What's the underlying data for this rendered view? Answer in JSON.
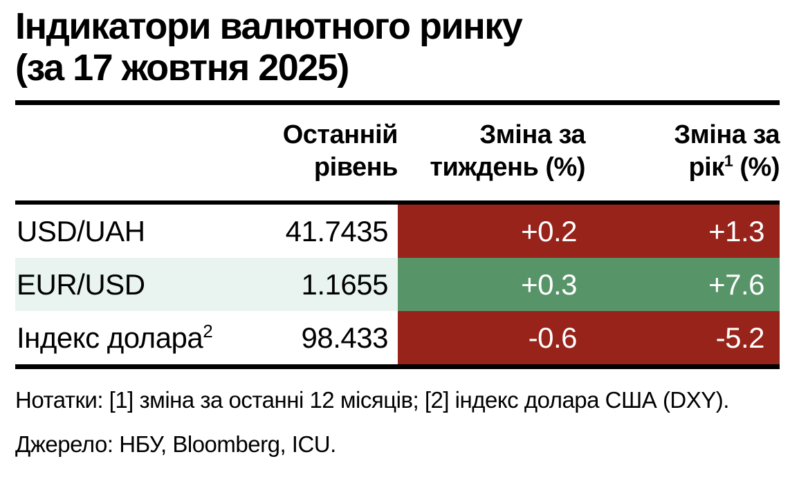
{
  "title": {
    "line1": "Індикатори валютного ринку",
    "line2": "(за 17 жовтня 2025)"
  },
  "table": {
    "columns": [
      {
        "line1": "",
        "line2": ""
      },
      {
        "line1": "Останній",
        "line2": "рівень"
      },
      {
        "line1": "Зміна за",
        "line2": "тиждень (%)"
      },
      {
        "line1": "Зміна за",
        "line2_pre": "рік",
        "sup": "1",
        "line2_post": " (%)"
      }
    ],
    "rows": [
      {
        "label": "USD/UAH",
        "sup": "",
        "level": "41.7435",
        "week": "+0.2",
        "year": "+1.3",
        "highlight": "negative"
      },
      {
        "label": "EUR/USD",
        "sup": "",
        "level": "1.1655",
        "week": "+0.3",
        "year": "+7.6",
        "highlight": "positive"
      },
      {
        "label": "Індекс долара",
        "sup": "2",
        "level": "98.433",
        "week": "-0.6",
        "year": "-5.2",
        "highlight": "negative"
      }
    ]
  },
  "notes": "Нотатки: [1] зміна за останні 12 місяців; [2] індекс долара США (DXY).",
  "source": "Джерело: НБУ, Bloomberg, ICU.",
  "colors": {
    "negative-bg": "#97231a",
    "positive-bg": "#579468",
    "rowalt-bg": "#e9f4f1",
    "text": "#000000",
    "rule": "#000000",
    "onchange-text": "#ffffff"
  }
}
